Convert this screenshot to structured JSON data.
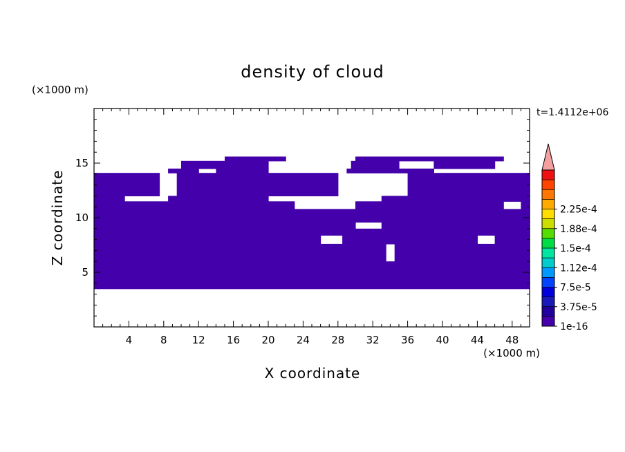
{
  "chart_data": {
    "type": "heatmap",
    "title": "density of cloud",
    "xlabel": "X coordinate",
    "ylabel": "Z coordinate",
    "x_unit": "(×1000 m)",
    "y_unit": "(×1000 m)",
    "time_label": "t=1.4112e+06",
    "xlim": [
      0,
      50
    ],
    "ylim": [
      0,
      20
    ],
    "x_ticks": [
      4,
      8,
      12,
      16,
      20,
      24,
      28,
      32,
      36,
      40,
      44,
      48
    ],
    "y_ticks": [
      5,
      10,
      15
    ],
    "fill_color": "#4400aa",
    "filled_bands": [
      {
        "z": [
          3.5,
          4.6
        ],
        "x": [
          [
            0,
            50
          ]
        ]
      },
      {
        "z": [
          4.6,
          6.0
        ],
        "x": [
          [
            0,
            50
          ]
        ]
      },
      {
        "z": [
          6.0,
          7.6
        ],
        "x": [
          [
            0,
            33.5
          ],
          [
            34.5,
            50
          ]
        ]
      },
      {
        "z": [
          7.6,
          8.4
        ],
        "x": [
          [
            0,
            26
          ],
          [
            28.5,
            44
          ],
          [
            46,
            50
          ]
        ]
      },
      {
        "z": [
          8.4,
          9.0
        ],
        "x": [
          [
            0,
            50
          ]
        ]
      },
      {
        "z": [
          9.0,
          9.6
        ],
        "x": [
          [
            0,
            30
          ],
          [
            33,
            50
          ]
        ]
      },
      {
        "z": [
          9.6,
          10.8
        ],
        "x": [
          [
            0,
            50
          ]
        ]
      },
      {
        "z": [
          10.8,
          11.5
        ],
        "x": [
          [
            0,
            23
          ],
          [
            30,
            47
          ],
          [
            49,
            50
          ]
        ]
      },
      {
        "z": [
          11.5,
          12.0
        ],
        "x": [
          [
            0,
            3.5
          ],
          [
            8.5,
            20
          ],
          [
            33,
            50
          ]
        ]
      },
      {
        "z": [
          12.0,
          14.1
        ],
        "x": [
          [
            0,
            7.5
          ],
          [
            9.5,
            28
          ],
          [
            36,
            50
          ]
        ]
      },
      {
        "z": [
          14.1,
          14.5
        ],
        "x": [
          [
            8.5,
            12
          ],
          [
            14,
            20
          ],
          [
            29,
            39
          ]
        ]
      },
      {
        "z": [
          14.5,
          15.2
        ],
        "x": [
          [
            10,
            20
          ],
          [
            29.5,
            35
          ],
          [
            39,
            46
          ]
        ]
      },
      {
        "z": [
          15.2,
          15.6
        ],
        "x": [
          [
            15,
            22
          ],
          [
            30,
            47
          ]
        ]
      }
    ],
    "colorbar": {
      "labels": [
        "1e-16",
        "3.75e-5",
        "7.5e-5",
        "1.12e-4",
        "1.5e-4",
        "1.88e-4",
        "2.25e-4"
      ],
      "colors": [
        "#4400aa",
        "#22009e",
        "#1a1ab8",
        "#0000dd",
        "#0044ff",
        "#0099ff",
        "#00cccc",
        "#00e6a0",
        "#00dd44",
        "#55dd00",
        "#ccdd00",
        "#ffdd00",
        "#ffaa00",
        "#ff7700",
        "#ff4400",
        "#ee1111"
      ],
      "extend_color": "#f4a0a0"
    }
  }
}
